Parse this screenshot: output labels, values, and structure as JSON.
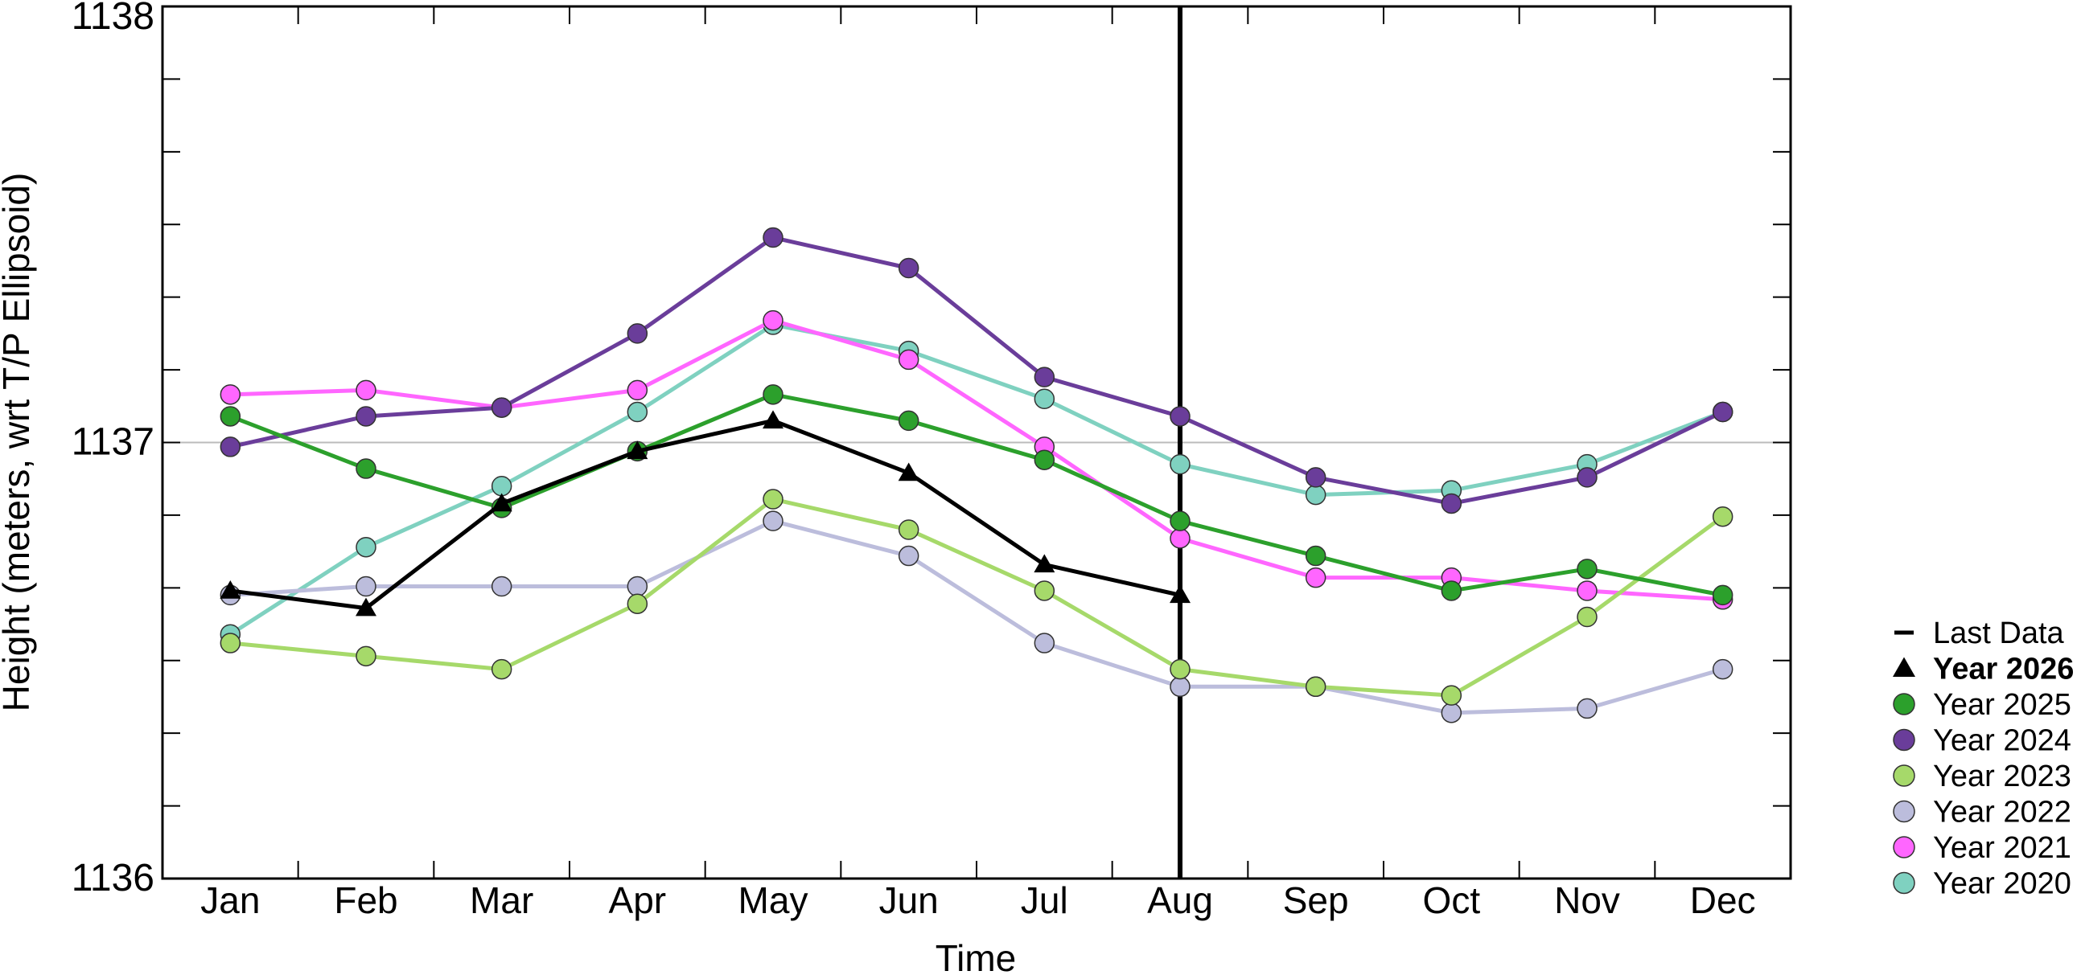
{
  "chart_data": {
    "type": "line",
    "xlabel": "Time",
    "ylabel": "Height (meters, wrt T/P Ellipsoid)",
    "categories": [
      "Jan",
      "Feb",
      "Mar",
      "Apr",
      "May",
      "Jun",
      "Jul",
      "Aug",
      "Sep",
      "Oct",
      "Nov",
      "Dec"
    ],
    "ylim": [
      1136,
      1138
    ],
    "yticks_labeled": [
      1136,
      1137,
      1138
    ],
    "yticks_minor_step": 0.1667,
    "reference_line_y": 1137,
    "last_data_month": "Aug",
    "grid": false,
    "legend_position": "right",
    "legend": {
      "last_data_label": "Last Data"
    },
    "series": [
      {
        "name": "Year 2026",
        "color": "#000000",
        "marker": "triangle",
        "bold": true,
        "values": [
          1136.66,
          1136.62,
          1136.86,
          1136.98,
          1137.05,
          1136.93,
          1136.72,
          1136.65,
          null,
          null,
          null,
          null
        ]
      },
      {
        "name": "Year 2025",
        "color": "#2ca02c",
        "marker": "circle",
        "values": [
          1137.06,
          1136.94,
          1136.85,
          1136.98,
          1137.11,
          1137.05,
          1136.96,
          1136.82,
          1136.74,
          1136.66,
          1136.71,
          1136.65
        ]
      },
      {
        "name": "Year 2024",
        "color": "#6a3d9a",
        "marker": "circle",
        "values": [
          1136.99,
          1137.06,
          1137.08,
          1137.25,
          1137.47,
          1137.4,
          1137.15,
          1137.06,
          1136.92,
          1136.86,
          1136.92,
          1137.07
        ]
      },
      {
        "name": "Year 2023",
        "color": "#a6d96a",
        "marker": "circle",
        "values": [
          1136.54,
          1136.51,
          1136.48,
          1136.63,
          1136.87,
          1136.8,
          1136.66,
          1136.48,
          1136.44,
          1136.42,
          1136.6,
          1136.83
        ]
      },
      {
        "name": "Year 2022",
        "color": "#bcbddc",
        "marker": "circle",
        "values": [
          1136.65,
          1136.67,
          1136.67,
          1136.67,
          1136.82,
          1136.74,
          1136.54,
          1136.44,
          1136.44,
          1136.38,
          1136.39,
          1136.48
        ]
      },
      {
        "name": "Year 2021",
        "color": "#ff66ff",
        "marker": "circle",
        "values": [
          1137.11,
          1137.12,
          1137.08,
          1137.12,
          1137.28,
          1137.19,
          1136.99,
          1136.78,
          1136.69,
          1136.69,
          1136.66,
          1136.64
        ]
      },
      {
        "name": "Year 2020",
        "color": "#7fd1c0",
        "marker": "circle",
        "values": [
          1136.56,
          1136.76,
          1136.9,
          1137.07,
          1137.27,
          1137.21,
          1137.1,
          1136.95,
          1136.88,
          1136.89,
          1136.95,
          1137.07
        ]
      }
    ]
  }
}
